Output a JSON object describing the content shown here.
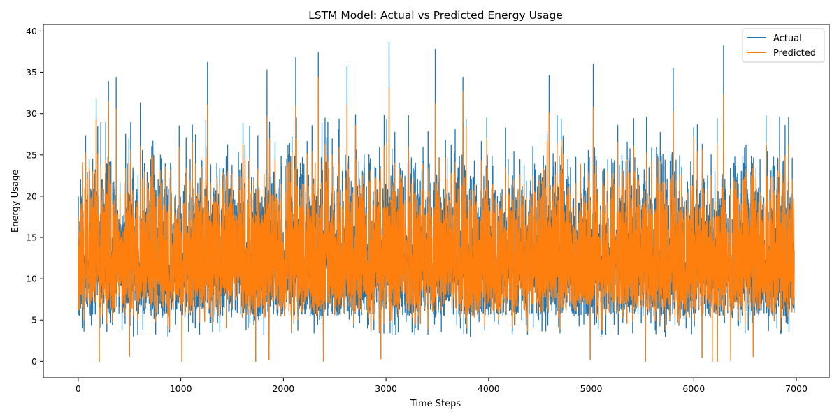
{
  "chart_data": {
    "type": "line",
    "title": "LSTM Model: Actual vs Predicted Energy Usage",
    "xlabel": "Time Steps",
    "ylabel": "Energy Usage",
    "xlim": [
      -340,
      7320
    ],
    "ylim": [
      -2,
      40.8
    ],
    "xticks": [
      0,
      1000,
      2000,
      3000,
      4000,
      5000,
      6000,
      7000
    ],
    "yticks": [
      0,
      5,
      10,
      15,
      20,
      25,
      30,
      35,
      40
    ],
    "grid": false,
    "legend_position": "top-right",
    "n_points": 6980,
    "series": [
      {
        "name": "Actual",
        "color": "#1f77b4"
      },
      {
        "name": "Predicted",
        "color": "#ff7f0e"
      }
    ],
    "notable_peaks": [
      {
        "x": 175,
        "y": 31.7
      },
      {
        "x": 295,
        "y": 33.9
      },
      {
        "x": 370,
        "y": 34.4
      },
      {
        "x": 605,
        "y": 31.3
      },
      {
        "x": 1260,
        "y": 36.2
      },
      {
        "x": 1840,
        "y": 35.3
      },
      {
        "x": 2120,
        "y": 36.8
      },
      {
        "x": 2340,
        "y": 37.4
      },
      {
        "x": 2620,
        "y": 35.7
      },
      {
        "x": 3030,
        "y": 38.7
      },
      {
        "x": 3480,
        "y": 37.8
      },
      {
        "x": 3750,
        "y": 34.4
      },
      {
        "x": 4590,
        "y": 34.6
      },
      {
        "x": 5020,
        "y": 36.0
      },
      {
        "x": 5800,
        "y": 35.5
      },
      {
        "x": 6290,
        "y": 38.2
      },
      {
        "x": 6980,
        "y": 32.2
      }
    ],
    "notable_dips": [
      {
        "x": 205,
        "y": 0.0
      },
      {
        "x": 500,
        "y": 0.6
      },
      {
        "x": 1010,
        "y": 0.0
      },
      {
        "x": 1730,
        "y": 0.0
      },
      {
        "x": 1860,
        "y": 0.2
      },
      {
        "x": 2390,
        "y": 0.0
      },
      {
        "x": 2950,
        "y": 0.3
      },
      {
        "x": 4990,
        "y": 0.2
      },
      {
        "x": 5530,
        "y": 0.0
      },
      {
        "x": 6080,
        "y": 0.5
      },
      {
        "x": 6180,
        "y": 0.0
      },
      {
        "x": 6230,
        "y": 0.0
      },
      {
        "x": 6360,
        "y": 0.1
      },
      {
        "x": 6580,
        "y": 0.6
      }
    ]
  }
}
